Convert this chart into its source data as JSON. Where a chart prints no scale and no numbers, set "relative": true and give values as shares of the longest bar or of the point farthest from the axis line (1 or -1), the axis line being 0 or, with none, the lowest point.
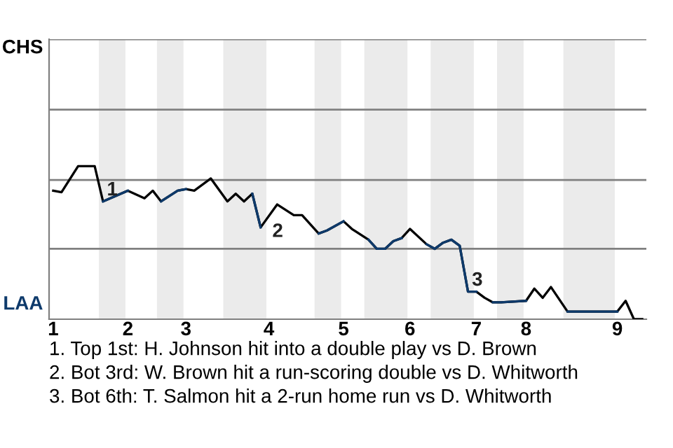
{
  "chart_data": {
    "type": "line",
    "relative": true,
    "categories": [
      "1",
      null,
      null,
      null,
      null,
      null,
      null,
      null,
      null,
      "2",
      null,
      null,
      null,
      null,
      null,
      null,
      "3",
      null,
      null,
      null,
      null,
      null,
      null,
      null,
      null,
      null,
      "4",
      null,
      null,
      null,
      null,
      null,
      null,
      null,
      null,
      "5",
      null,
      null,
      null,
      null,
      null,
      null,
      null,
      "6",
      null,
      null,
      null,
      null,
      null,
      null,
      null,
      "7",
      null,
      null,
      null,
      null,
      null,
      "8",
      null,
      null,
      null,
      null,
      null,
      null,
      null,
      null,
      null,
      null,
      "9",
      null,
      null,
      null
    ],
    "line_style": "solid",
    "marker": "none",
    "ref_lines": [
      {
        "axis": "y",
        "value": 0.46,
        "color": "#808080"
      },
      {
        "axis": "y",
        "value": 0.91,
        "color": "#808080"
      },
      {
        "axis": "y",
        "value": 1.37,
        "color": "#808080"
      },
      {
        "axis": "y",
        "value": 1.83,
        "color": "#808080"
      }
    ],
    "series": [
      {
        "color": "#000000",
        "values": [
          0.84,
          0.83,
          null,
          1,
          null,
          1,
          0.77,
          null,
          null,
          0.84,
          null,
          0.79,
          0.84,
          0.77,
          null,
          0.84,
          0.85,
          0.84,
          null,
          0.92,
          null,
          0.77,
          0.82,
          0.77,
          0.82,
          0.6,
          null,
          0.75,
          null,
          0.68,
          0.68,
          null,
          0.56,
          0.58,
          null,
          0.64,
          0.59,
          null,
          0.52,
          0.46,
          0.46,
          0.51,
          0.53,
          0.59,
          null,
          0.49,
          0.46,
          0.5,
          0.52,
          0.48,
          0.18,
          0.18,
          0.14,
          0.11,
          0.11,
          null,
          null,
          0.12,
          0.2,
          0.14,
          0.21,
          null,
          0.05,
          null,
          null,
          null,
          null,
          null,
          0.05,
          0.12,
          0,
          0
        ]
      },
      {
        "color": "#0e3a6b",
        "values": [
          null,
          null,
          null,
          null,
          null,
          null,
          0.77,
          null,
          null,
          0.84,
          null,
          null,
          null,
          null,
          null,
          null,
          null,
          null,
          null,
          null,
          null,
          null,
          null,
          null,
          null,
          null,
          null,
          null,
          null,
          null,
          null,
          null,
          null,
          null,
          null,
          null,
          null,
          null,
          null,
          null,
          null,
          null,
          null,
          null,
          null,
          null,
          null,
          null,
          null,
          null,
          null,
          null,
          null,
          null,
          null,
          null,
          null,
          null,
          null,
          null,
          null,
          null,
          null,
          null,
          null,
          null,
          null,
          null,
          null,
          null,
          null,
          null
        ]
      },
      {
        "color": "#0e3a6b",
        "values": [
          null,
          null,
          null,
          null,
          null,
          null,
          null,
          null,
          null,
          null,
          null,
          null,
          null,
          0.77,
          null,
          0.84,
          0.85,
          null,
          null,
          null,
          null,
          null,
          null,
          null,
          null,
          null,
          null,
          null,
          null,
          null,
          null,
          null,
          null,
          null,
          null,
          null,
          null,
          null,
          null,
          null,
          null,
          null,
          null,
          null,
          null,
          null,
          null,
          null,
          null,
          null,
          null,
          null,
          null,
          null,
          null,
          null,
          null,
          null,
          null,
          null,
          null,
          null,
          null,
          null,
          null,
          null,
          null,
          null,
          null,
          null,
          null,
          null
        ]
      },
      {
        "color": "#0e3a6b",
        "values": [
          null,
          null,
          null,
          null,
          null,
          null,
          null,
          null,
          null,
          null,
          null,
          null,
          null,
          null,
          null,
          null,
          null,
          null,
          null,
          null,
          null,
          null,
          null,
          null,
          0.82,
          0.6,
          null,
          null,
          null,
          null,
          null,
          null,
          null,
          null,
          null,
          null,
          null,
          null,
          null,
          null,
          null,
          null,
          null,
          null,
          null,
          null,
          null,
          null,
          null,
          null,
          null,
          null,
          null,
          null,
          null,
          null,
          null,
          null,
          null,
          null,
          null,
          null,
          null,
          null,
          null,
          null,
          null,
          null,
          null,
          null,
          null,
          null
        ]
      },
      {
        "color": "#0e3a6b",
        "values": [
          null,
          null,
          null,
          null,
          null,
          null,
          null,
          null,
          null,
          null,
          null,
          null,
          null,
          null,
          null,
          null,
          null,
          null,
          null,
          null,
          null,
          null,
          null,
          null,
          null,
          null,
          null,
          null,
          null,
          null,
          null,
          null,
          0.56,
          0.58,
          null,
          0.64,
          null,
          null,
          null,
          null,
          null,
          null,
          null,
          null,
          null,
          null,
          null,
          null,
          null,
          null,
          null,
          null,
          null,
          null,
          null,
          null,
          null,
          null,
          null,
          null,
          null,
          null,
          null,
          null,
          null,
          null,
          null,
          null,
          null,
          null,
          null,
          null
        ]
      },
      {
        "color": "#0e3a6b",
        "values": [
          null,
          null,
          null,
          null,
          null,
          null,
          null,
          null,
          null,
          null,
          null,
          null,
          null,
          null,
          null,
          null,
          null,
          null,
          null,
          null,
          null,
          null,
          null,
          null,
          null,
          null,
          null,
          null,
          null,
          null,
          null,
          null,
          null,
          null,
          null,
          null,
          null,
          null,
          0.52,
          0.46,
          0.46,
          0.51,
          0.53,
          null,
          null,
          null,
          null,
          null,
          null,
          null,
          null,
          null,
          null,
          null,
          null,
          null,
          null,
          null,
          null,
          null,
          null,
          null,
          null,
          null,
          null,
          null,
          null,
          null,
          null,
          null,
          null,
          null
        ]
      },
      {
        "color": "#0e3a6b",
        "values": [
          null,
          null,
          null,
          null,
          null,
          null,
          null,
          null,
          null,
          null,
          null,
          null,
          null,
          null,
          null,
          null,
          null,
          null,
          null,
          null,
          null,
          null,
          null,
          null,
          null,
          null,
          null,
          null,
          null,
          null,
          null,
          null,
          null,
          null,
          null,
          null,
          null,
          null,
          null,
          null,
          null,
          null,
          null,
          null,
          null,
          0.49,
          0.46,
          0.5,
          0.52,
          0.48,
          0.18,
          0.18,
          null,
          null,
          null,
          null,
          null,
          null,
          null,
          null,
          null,
          null,
          null,
          null,
          null,
          null,
          null,
          null,
          null,
          null,
          null,
          null
        ]
      },
      {
        "color": "#0e3a6b",
        "values": [
          null,
          null,
          null,
          null,
          null,
          null,
          null,
          null,
          null,
          null,
          null,
          null,
          null,
          null,
          null,
          null,
          null,
          null,
          null,
          null,
          null,
          null,
          null,
          null,
          null,
          null,
          null,
          null,
          null,
          null,
          null,
          null,
          null,
          null,
          null,
          null,
          null,
          null,
          null,
          null,
          null,
          null,
          null,
          null,
          null,
          null,
          null,
          null,
          null,
          null,
          null,
          null,
          null,
          0.11,
          0.11,
          null,
          null,
          0.12,
          null,
          null,
          null,
          null,
          null,
          null,
          null,
          null,
          null,
          null,
          null,
          null,
          null,
          null
        ]
      },
      {
        "color": "#0e3a6b",
        "values": [
          null,
          null,
          null,
          null,
          null,
          null,
          null,
          null,
          null,
          null,
          null,
          null,
          null,
          null,
          null,
          null,
          null,
          null,
          null,
          null,
          null,
          null,
          null,
          null,
          null,
          null,
          null,
          null,
          null,
          null,
          null,
          null,
          null,
          null,
          null,
          null,
          null,
          null,
          null,
          null,
          null,
          null,
          null,
          null,
          null,
          null,
          null,
          null,
          null,
          null,
          null,
          null,
          null,
          null,
          null,
          null,
          null,
          null,
          null,
          null,
          null,
          null,
          0.05,
          null,
          null,
          null,
          null,
          null,
          0.05,
          null,
          null,
          null
        ]
      }
    ],
    "annotations": [
      "1",
      "2",
      "3",
      "CHS",
      "LAA",
      "1. Top 1st: H. Johnson hit into a double play vs D. Brown",
      "2. Bot 3rd: W. Brown hit a run-scoring double vs D. Whitworth",
      "3. Bot 6th: T. Salmon hit a 2-run home run vs D. Whitworth"
    ]
  }
}
